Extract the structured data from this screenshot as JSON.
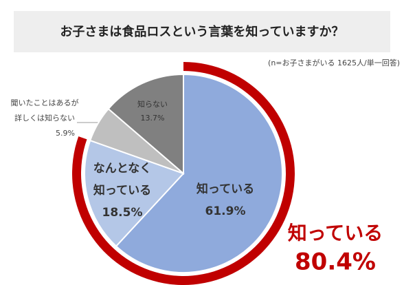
{
  "chart_data": {
    "type": "pie",
    "title": "お子さまは食品ロスという言葉を知っていますか？",
    "subtitle": "(n=お子さまがいる 1625人/単一回答)",
    "categories": [
      [
        "知っている"
      ],
      [
        "なんとなく",
        "知っている"
      ],
      [
        "聞いたことはあるが",
        "詳しくは知らない"
      ],
      [
        "知らない"
      ]
    ],
    "values": [
      61.9,
      18.5,
      5.9,
      13.7
    ],
    "value_labels": [
      "61.9%",
      "18.5%",
      "5.9%",
      "13.7%"
    ],
    "colors": [
      "#8faadc",
      "#b4c7e7",
      "#bfbfbf",
      "#808080"
    ],
    "annotation": {
      "label": "知っている",
      "value": 80.4,
      "value_label": "80.4%",
      "color": "#c00000"
    }
  }
}
